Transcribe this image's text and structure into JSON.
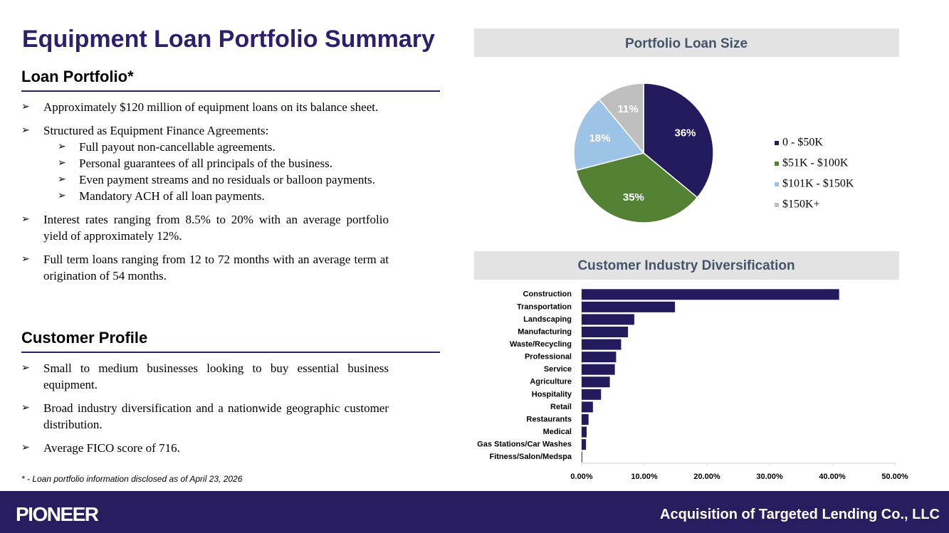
{
  "header": {
    "title": "Equipment Loan Portfolio Summary"
  },
  "sections": [
    {
      "heading": "Loan Portfolio*",
      "bullets": [
        {
          "text": "Approximately $120 million of equipment loans on its balance sheet."
        },
        {
          "text": "Structured as Equipment Finance Agreements:",
          "sub": [
            "Full payout non-cancellable agreements.",
            "Personal guarantees of all principals of the business.",
            "Even payment streams and no residuals or balloon payments.",
            "Mandatory ACH of all loan payments."
          ]
        },
        {
          "text": "Interest rates ranging from 8.5% to 20% with an average portfolio yield of approximately 12%."
        },
        {
          "text": "Full term loans ranging from 12 to 72 months with an average term at origination of 54 months."
        }
      ]
    },
    {
      "heading": "Customer Profile",
      "bullets": [
        {
          "text": "Small to medium businesses looking to buy essential business equipment."
        },
        {
          "text": "Broad industry diversification and a nationwide geographic customer distribution."
        },
        {
          "text": "Average FICO score of 716."
        }
      ]
    }
  ],
  "footnote": "* - Loan portfolio information disclosed as of April 23, 2026",
  "footer": {
    "logo": "PIONEER",
    "tagline": "Acquisition of Targeted Lending Co., LLC"
  },
  "chart_data": [
    {
      "type": "pie",
      "title": "Portfolio Loan Size",
      "categories": [
        "0 - $50K",
        "$51K - $100K",
        "$101K - $150K",
        "$150K+"
      ],
      "values": [
        36,
        35,
        18,
        11
      ],
      "value_labels": [
        "36%",
        "35%",
        "18%",
        "11%"
      ],
      "colors": [
        "#241b5e",
        "#548235",
        "#9dc3e6",
        "#bfbfbf"
      ],
      "legend": "right"
    },
    {
      "type": "barh",
      "title": "Customer Industry Diversification",
      "color": "#241b5e",
      "categories": [
        "Construction",
        "Transportation",
        "Landscaping",
        "Manufacturing",
        "Waste/Recycling",
        "Professional",
        "Service",
        "Agriculture",
        "Hospitality",
        "Retail",
        "Restaurants",
        "Medical",
        "Gas Stations/Car Washes",
        "Fitness/Salon/Medspa"
      ],
      "values": [
        41.1,
        14.9,
        8.4,
        7.4,
        6.3,
        5.5,
        5.3,
        4.5,
        3.1,
        1.8,
        1.1,
        0.8,
        0.7,
        0.1
      ],
      "xlim": [
        0,
        50
      ],
      "xticks": [
        {
          "value": 0,
          "label": "0.00%"
        },
        {
          "value": 10,
          "label": "10.00%"
        },
        {
          "value": 20,
          "label": "20.00%"
        },
        {
          "value": 30,
          "label": "30.00%"
        },
        {
          "value": 40,
          "label": "40.00%"
        },
        {
          "value": 50,
          "label": "50.00%"
        }
      ]
    }
  ]
}
